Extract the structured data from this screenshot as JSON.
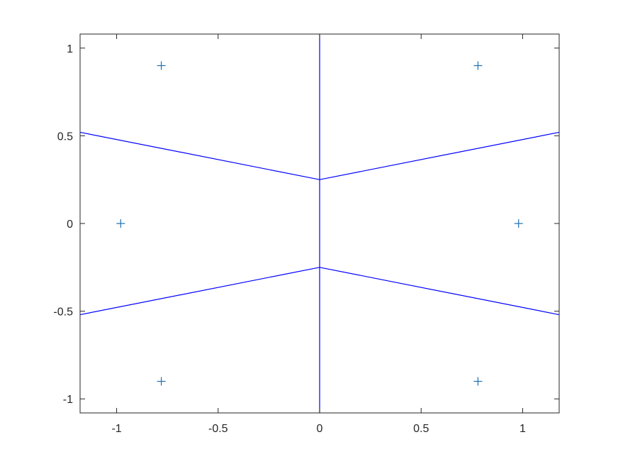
{
  "chart_data": {
    "type": "line",
    "title": "",
    "xlabel": "",
    "ylabel": "",
    "xlim": [
      -1.18,
      1.18
    ],
    "ylim": [
      -1.08,
      1.08
    ],
    "grid": false,
    "x_ticks": [
      "-1",
      "-0.5",
      "0",
      "0.5",
      "1"
    ],
    "x_tick_values": [
      -1,
      -0.5,
      0,
      0.5,
      1
    ],
    "y_ticks": [
      "-1",
      "-0.5",
      "0",
      "0.5",
      "1"
    ],
    "y_tick_values": [
      -1,
      -0.5,
      0,
      0.5,
      1
    ],
    "colors": {
      "lines": "#0000ff",
      "markers": "#1f6fb0",
      "axes": "#262626"
    },
    "lines": [
      {
        "x": [
          -1.18,
          0,
          1.18
        ],
        "y": [
          0.52,
          0.25,
          0.52
        ]
      },
      {
        "x": [
          -1.18,
          0,
          1.18
        ],
        "y": [
          -0.52,
          -0.25,
          -0.52
        ]
      },
      {
        "x": [
          0,
          0
        ],
        "y": [
          -1.08,
          1.08
        ]
      }
    ],
    "points": {
      "marker": "plus",
      "x": [
        -0.78,
        0.78,
        -0.98,
        0.98,
        -0.78,
        0.78
      ],
      "y": [
        0.9,
        0.9,
        0,
        0,
        -0.9,
        -0.9
      ]
    }
  }
}
